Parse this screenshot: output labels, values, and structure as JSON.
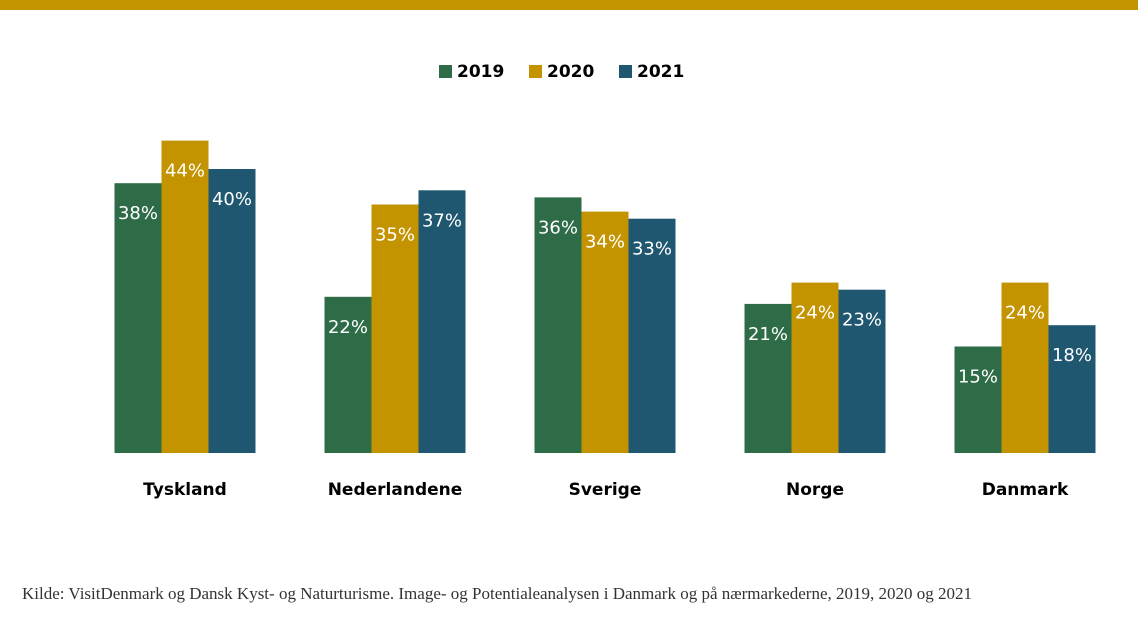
{
  "chart_data": {
    "type": "bar",
    "categories": [
      "Tyskland",
      "Nederlandene",
      "Sverige",
      "Norge",
      "Danmark"
    ],
    "series": [
      {
        "name": "2019",
        "color": "#2e6b47",
        "values": [
          38,
          22,
          36,
          21,
          15
        ],
        "value_labels": [
          "38%",
          "22%",
          "36%",
          "21%",
          "15%"
        ]
      },
      {
        "name": "2020",
        "color": "#c49300",
        "values": [
          44,
          35,
          34,
          24,
          24
        ],
        "value_labels": [
          "44%",
          "35%",
          "34%",
          "24%",
          "24%"
        ]
      },
      {
        "name": "2021",
        "color": "#1f5670",
        "values": [
          40,
          37,
          33,
          23,
          18
        ],
        "value_labels": [
          "40%",
          "37%",
          "33%",
          "23%",
          "18%"
        ]
      }
    ],
    "note": "Kilde: VisitDenmark og Dansk Kyst- og Naturturisme. Image- og Potentialeanalysen i Danmark og på nærmarkederne, 2019, 2020 og 2021"
  }
}
